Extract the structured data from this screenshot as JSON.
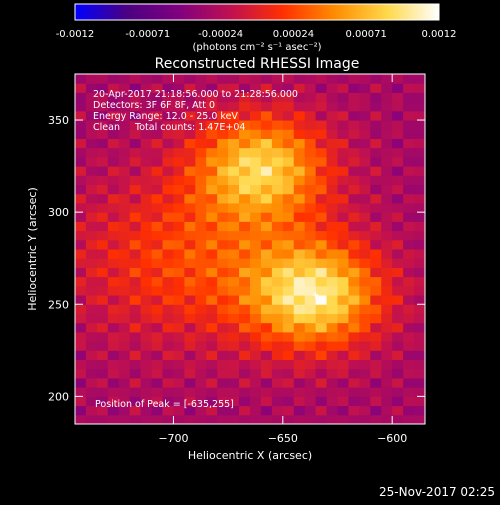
{
  "colorbar": {
    "ticks": [
      "-0.0012",
      "-0.00071",
      "-0.00024",
      "0.00024",
      "0.00071",
      "0.0012"
    ],
    "range": [
      -0.0012,
      0.0012
    ],
    "colormap": [
      "#0000ff",
      "#4b0082",
      "#800080",
      "#c01050",
      "#ff3000",
      "#ff8c00",
      "#ffd84a",
      "#ffffff"
    ]
  },
  "chart_data": {
    "type": "heatmap",
    "title": "Reconstructed RHESSI Image",
    "xlabel": "Heliocentric X (arcsec)",
    "ylabel": "Heliocentric Y (arcsec)",
    "xlim": [
      -745,
      -585
    ],
    "ylim": [
      185,
      375
    ],
    "xticks": [
      -700,
      -650,
      -600
    ],
    "yticks": [
      200,
      250,
      300,
      350
    ],
    "legend_placement": "top (horizontal colorbar)",
    "info_lines": [
      "20-Apr-2017 21:18:56.000 to 21:28:56.000",
      "Detectors: 3F 6F 8F, Att 0",
      "Energy Range: 12.0 - 25.0 keV",
      "Clean     Total counts: 1.47E+04"
    ],
    "peak_text": "Position of Peak = [-635,255]",
    "peak": [
      -635,
      255
    ],
    "intensity_units": "(photons cm⁻² s⁻¹ asec⁻²)",
    "sources": [
      {
        "x": -635,
        "y": 255,
        "peak": 0.00118
      },
      {
        "x": -660,
        "y": 325,
        "peak": 0.00108
      }
    ],
    "timestamp": "25-Nov-2017 02:25"
  }
}
